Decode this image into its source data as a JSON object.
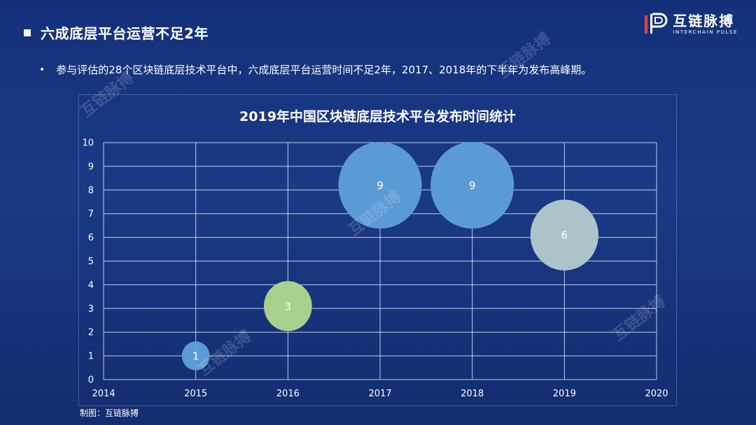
{
  "heading": {
    "title": "六成底层平台运营不足2年"
  },
  "bullet": {
    "text": "参与评估的28个区块链底层技术平台中，六成底层平台运营时间不足2年，2017、2018年的下半年为发布高峰期。"
  },
  "logo": {
    "name": "互链脉搏",
    "subtitle": "INTERCHAIN PULSE"
  },
  "watermark": {
    "text": "互链脉搏"
  },
  "source": {
    "text": "制图：互链脉搏"
  },
  "colors": {
    "background": "#17357f",
    "gridline": "#ffffff"
  },
  "chart_data": {
    "type": "scatter",
    "variant": "bubble",
    "title": "2019年中国区块链底层技术平台发布时间统计",
    "xlabel": "",
    "ylabel": "",
    "xlim": [
      2014,
      2020
    ],
    "ylim": [
      0,
      10
    ],
    "x_ticks": [
      "2014",
      "2015",
      "2016",
      "2017",
      "2018",
      "2019",
      "2020"
    ],
    "y_ticks": [
      "0",
      "1",
      "2",
      "3",
      "4",
      "5",
      "6",
      "7",
      "8",
      "9",
      "10"
    ],
    "grid": true,
    "legend": "none",
    "points": [
      {
        "x": 2015,
        "y": 1,
        "size": 1,
        "label": "1",
        "color": "#5b9bd5"
      },
      {
        "x": 2016,
        "y": 3.1,
        "size": 3,
        "label": "3",
        "color": "#a9d18e"
      },
      {
        "x": 2017,
        "y": 8.2,
        "size": 9,
        "label": "9",
        "color": "#5b9bd5"
      },
      {
        "x": 2018,
        "y": 8.2,
        "size": 9,
        "label": "9",
        "color": "#5b9bd5"
      },
      {
        "x": 2019,
        "y": 6.1,
        "size": 6,
        "label": "6",
        "color": "#adc3cc"
      }
    ]
  }
}
